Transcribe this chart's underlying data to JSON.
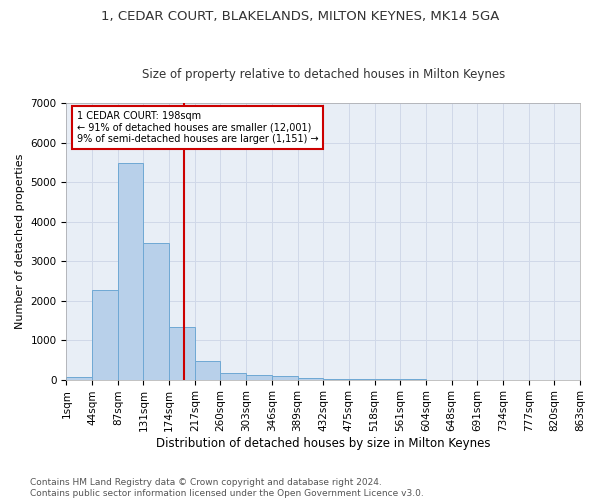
{
  "title": "1, CEDAR COURT, BLAKELANDS, MILTON KEYNES, MK14 5GA",
  "subtitle": "Size of property relative to detached houses in Milton Keynes",
  "xlabel": "Distribution of detached houses by size in Milton Keynes",
  "ylabel": "Number of detached properties",
  "bar_values": [
    75,
    2280,
    5480,
    3450,
    1330,
    470,
    160,
    120,
    80,
    40,
    20,
    10,
    5,
    3,
    2,
    1,
    0,
    0,
    0,
    0
  ],
  "bar_labels": [
    "1sqm",
    "44sqm",
    "87sqm",
    "131sqm",
    "174sqm",
    "217sqm",
    "260sqm",
    "303sqm",
    "346sqm",
    "389sqm",
    "432sqm",
    "475sqm",
    "518sqm",
    "561sqm",
    "604sqm",
    "648sqm",
    "691sqm",
    "734sqm",
    "777sqm",
    "820sqm",
    "863sqm"
  ],
  "bar_color": "#b8d0ea",
  "bar_edge_color": "#6fa8d4",
  "annotation_text": "1 CEDAR COURT: 198sqm\n← 91% of detached houses are smaller (12,001)\n9% of semi-detached houses are larger (1,151) →",
  "annotation_box_color": "#ffffff",
  "annotation_box_edge": "#cc0000",
  "vline_x_data": 4.57,
  "vline_color": "#cc0000",
  "ylim": [
    0,
    7000
  ],
  "yticks": [
    0,
    1000,
    2000,
    3000,
    4000,
    5000,
    6000,
    7000
  ],
  "grid_color": "#d0d8e8",
  "bg_color": "#e8eef6",
  "footer": "Contains HM Land Registry data © Crown copyright and database right 2024.\nContains public sector information licensed under the Open Government Licence v3.0.",
  "title_fontsize": 9.5,
  "subtitle_fontsize": 8.5,
  "xlabel_fontsize": 8.5,
  "ylabel_fontsize": 8,
  "tick_fontsize": 7.5,
  "footer_fontsize": 6.5
}
